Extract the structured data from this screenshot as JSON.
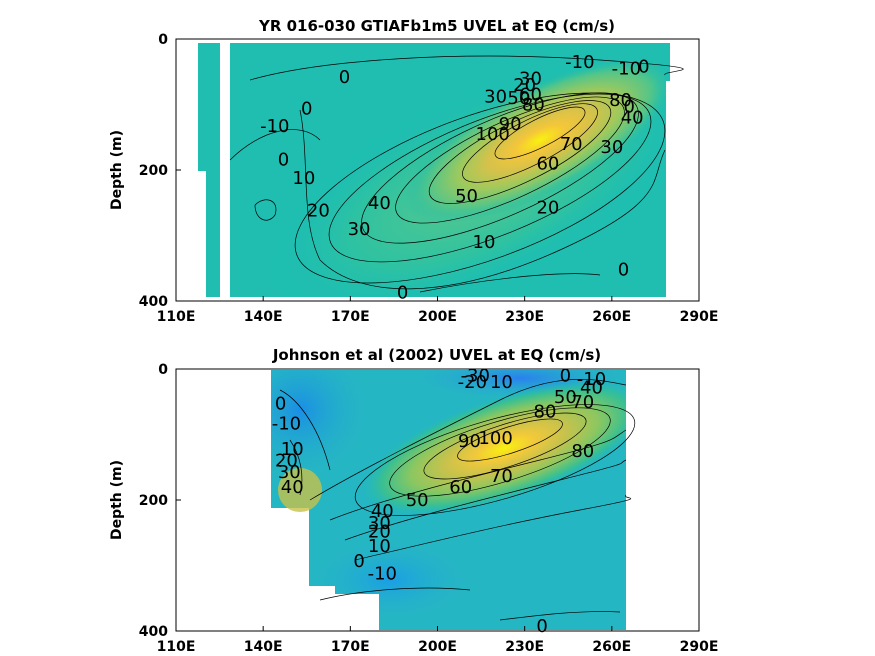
{
  "colors": {
    "background": "#ffffff",
    "contour_line": "#000000"
  },
  "chart_data": [
    {
      "type": "heatmap",
      "title": "YR 016-030 GTIAFb1m5 UVEL at EQ (cm/s)",
      "xlabel": "",
      "ylabel": "Depth (m)",
      "xlim": [
        110,
        290
      ],
      "ylim": [
        400,
        0
      ],
      "xticks": [
        "110E",
        "140E",
        "170E",
        "200E",
        "230E",
        "260E",
        "290E"
      ],
      "yticks": [
        "0",
        "200",
        "400"
      ],
      "data_lon_range": [
        117,
        278
      ],
      "core": {
        "lon": 232,
        "depth": 120,
        "max_cms": 110
      },
      "contour_labels": [
        {
          "text": "-10",
          "lon": 249,
          "depth": 35
        },
        {
          "text": "-10",
          "lon": 265,
          "depth": 45
        },
        {
          "text": "0",
          "lon": 271,
          "depth": 42
        },
        {
          "text": "0",
          "lon": 168,
          "depth": 58
        },
        {
          "text": "30",
          "lon": 220,
          "depth": 88
        },
        {
          "text": "20",
          "lon": 230,
          "depth": 70
        },
        {
          "text": "30",
          "lon": 232,
          "depth": 60
        },
        {
          "text": "50",
          "lon": 228,
          "depth": 90
        },
        {
          "text": "60",
          "lon": 232,
          "depth": 85
        },
        {
          "text": "90",
          "lon": 225,
          "depth": 130
        },
        {
          "text": "80",
          "lon": 233,
          "depth": 100
        },
        {
          "text": "100",
          "lon": 219,
          "depth": 145
        },
        {
          "text": "80",
          "lon": 263,
          "depth": 93
        },
        {
          "text": "0",
          "lon": 266,
          "depth": 103
        },
        {
          "text": "40",
          "lon": 267,
          "depth": 120
        },
        {
          "text": "0",
          "lon": 155,
          "depth": 106
        },
        {
          "text": "-10",
          "lon": 144,
          "depth": 133
        },
        {
          "text": "0",
          "lon": 147,
          "depth": 184
        },
        {
          "text": "10",
          "lon": 154,
          "depth": 212
        },
        {
          "text": "20",
          "lon": 159,
          "depth": 262
        },
        {
          "text": "40",
          "lon": 180,
          "depth": 250
        },
        {
          "text": "30",
          "lon": 173,
          "depth": 290
        },
        {
          "text": "50",
          "lon": 210,
          "depth": 240
        },
        {
          "text": "60",
          "lon": 238,
          "depth": 190
        },
        {
          "text": "70",
          "lon": 246,
          "depth": 160
        },
        {
          "text": "30",
          "lon": 260,
          "depth": 165
        },
        {
          "text": "20",
          "lon": 238,
          "depth": 257
        },
        {
          "text": "10",
          "lon": 216,
          "depth": 310
        },
        {
          "text": "0",
          "lon": 188,
          "depth": 387
        },
        {
          "text": "0",
          "lon": 264,
          "depth": 352
        }
      ]
    },
    {
      "type": "heatmap",
      "title": "Johnson et al (2002) UVEL at EQ (cm/s)",
      "xlabel": "",
      "ylabel": "Depth (m)",
      "xlim": [
        110,
        290
      ],
      "ylim": [
        400,
        0
      ],
      "xticks": [
        "110E",
        "140E",
        "170E",
        "200E",
        "230E",
        "260E",
        "290E"
      ],
      "yticks": [
        "0",
        "200",
        "400"
      ],
      "data_lon_range": [
        143,
        265
      ],
      "core": {
        "lon": 226,
        "depth": 115,
        "max_cms": 100
      },
      "contour_labels": [
        {
          "text": "-30",
          "lon": 213,
          "depth": 10
        },
        {
          "text": "-20",
          "lon": 212,
          "depth": 20
        },
        {
          "text": "10",
          "lon": 222,
          "depth": 20
        },
        {
          "text": "0",
          "lon": 244,
          "depth": 10
        },
        {
          "text": "-10",
          "lon": 253,
          "depth": 15
        },
        {
          "text": "50",
          "lon": 244,
          "depth": 43
        },
        {
          "text": "40",
          "lon": 253,
          "depth": 28
        },
        {
          "text": "70",
          "lon": 250,
          "depth": 50
        },
        {
          "text": "80",
          "lon": 237,
          "depth": 65
        },
        {
          "text": "0",
          "lon": 146,
          "depth": 53
        },
        {
          "text": "-10",
          "lon": 148,
          "depth": 83
        },
        {
          "text": "10",
          "lon": 150,
          "depth": 122
        },
        {
          "text": "20",
          "lon": 148,
          "depth": 140
        },
        {
          "text": "30",
          "lon": 149,
          "depth": 157
        },
        {
          "text": "40",
          "lon": 150,
          "depth": 180
        },
        {
          "text": "90",
          "lon": 211,
          "depth": 110
        },
        {
          "text": "100",
          "lon": 220,
          "depth": 105
        },
        {
          "text": "80",
          "lon": 250,
          "depth": 125
        },
        {
          "text": "70",
          "lon": 222,
          "depth": 163
        },
        {
          "text": "60",
          "lon": 208,
          "depth": 180
        },
        {
          "text": "50",
          "lon": 193,
          "depth": 200
        },
        {
          "text": "40",
          "lon": 181,
          "depth": 217
        },
        {
          "text": "30",
          "lon": 180,
          "depth": 235
        },
        {
          "text": "20",
          "lon": 180,
          "depth": 248
        },
        {
          "text": "10",
          "lon": 180,
          "depth": 270
        },
        {
          "text": "0",
          "lon": 173,
          "depth": 293
        },
        {
          "text": "-10",
          "lon": 181,
          "depth": 312
        },
        {
          "text": "0",
          "lon": 236,
          "depth": 392
        }
      ]
    }
  ]
}
